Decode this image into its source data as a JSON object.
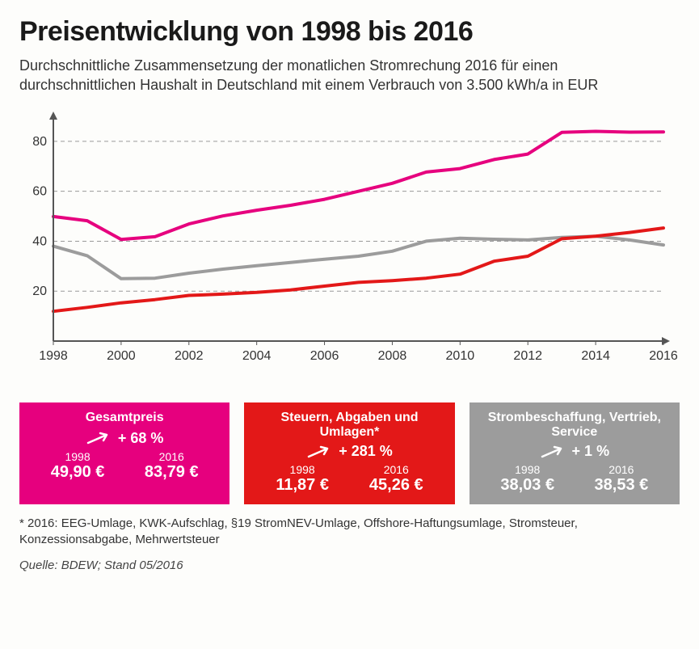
{
  "title": "Preisentwicklung von 1998 bis 2016",
  "subtitle": "Durchschnittliche Zusammensetzung der monatlichen Stromrechung 2016 für einen durchschnittlichen Haushalt in Deutschland mit einem Verbrauch von 3.500 kWh/a in EUR",
  "chart": {
    "type": "line",
    "background_color": "#fdfdfb",
    "grid_color": "#999999",
    "axis_color": "#555555",
    "ylim": [
      0,
      90
    ],
    "yticks": [
      20,
      40,
      60,
      80
    ],
    "xlim": [
      1998,
      2016
    ],
    "xticks": [
      1998,
      2000,
      2002,
      2004,
      2006,
      2008,
      2010,
      2012,
      2014,
      2016
    ],
    "line_width": 4,
    "series": [
      {
        "name": "Gesamtpreis",
        "color": "#e6007e",
        "x": [
          1998,
          1999,
          2000,
          2001,
          2002,
          2003,
          2004,
          2005,
          2006,
          2007,
          2008,
          2009,
          2010,
          2011,
          2012,
          2013,
          2014,
          2015,
          2016
        ],
        "y": [
          49.9,
          48.2,
          40.7,
          41.8,
          46.9,
          50.1,
          52.4,
          54.4,
          56.8,
          60.0,
          63.2,
          67.7,
          69.1,
          72.7,
          74.9,
          83.6,
          84.0,
          83.7,
          83.8
        ]
      },
      {
        "name": "Strombeschaffung, Vertrieb, Service",
        "color": "#9c9c9c",
        "x": [
          1998,
          1999,
          2000,
          2001,
          2002,
          2003,
          2004,
          2005,
          2006,
          2007,
          2008,
          2009,
          2010,
          2011,
          2012,
          2013,
          2014,
          2015,
          2016
        ],
        "y": [
          38.0,
          34.2,
          25.0,
          25.2,
          27.2,
          28.8,
          30.2,
          31.5,
          32.8,
          34.0,
          36.0,
          40.0,
          41.2,
          40.8,
          40.5,
          41.5,
          42.0,
          40.5,
          38.5
        ]
      },
      {
        "name": "Steuern, Abgaben und Umlagen",
        "color": "#e31818",
        "x": [
          1998,
          1999,
          2000,
          2001,
          2002,
          2003,
          2004,
          2005,
          2006,
          2007,
          2008,
          2009,
          2010,
          2011,
          2012,
          2013,
          2014,
          2015,
          2016
        ],
        "y": [
          11.9,
          13.5,
          15.3,
          16.6,
          18.3,
          18.8,
          19.5,
          20.5,
          22.0,
          23.5,
          24.2,
          25.2,
          26.8,
          32.0,
          34.0,
          41.0,
          42.0,
          43.5,
          45.3
        ]
      }
    ]
  },
  "boxes": [
    {
      "title": "Gesamtpreis",
      "bg_color": "#e6007e",
      "change": "+ 68 %",
      "year_a": "1998",
      "val_a": "49,90 €",
      "year_b": "2016",
      "val_b": "83,79 €"
    },
    {
      "title": "Steuern, Abgaben und Umlagen*",
      "bg_color": "#e31818",
      "change": "+ 281 %",
      "year_a": "1998",
      "val_a": "11,87 €",
      "year_b": "2016",
      "val_b": "45,26 €"
    },
    {
      "title": "Strombeschaffung, Vertrieb, Service",
      "bg_color": "#9c9c9c",
      "change": "+ 1 %",
      "year_a": "1998",
      "val_a": "38,03 €",
      "year_b": "2016",
      "val_b": "38,53 €"
    }
  ],
  "footnote": "* 2016: EEG-Umlage, KWK-Aufschlag, §19 StromNEV-Umlage, Offshore-Haftungsumlage, Stromsteuer, Konzessionsabgabe, Mehrwertsteuer",
  "source": "Quelle: BDEW; Stand 05/2016",
  "typography": {
    "title_fontsize": 34,
    "title_weight": 900,
    "subtitle_fontsize": 18,
    "tick_fontsize": 16,
    "box_title_fontsize": 16,
    "box_val_fontsize": 20,
    "footnote_fontsize": 15
  }
}
